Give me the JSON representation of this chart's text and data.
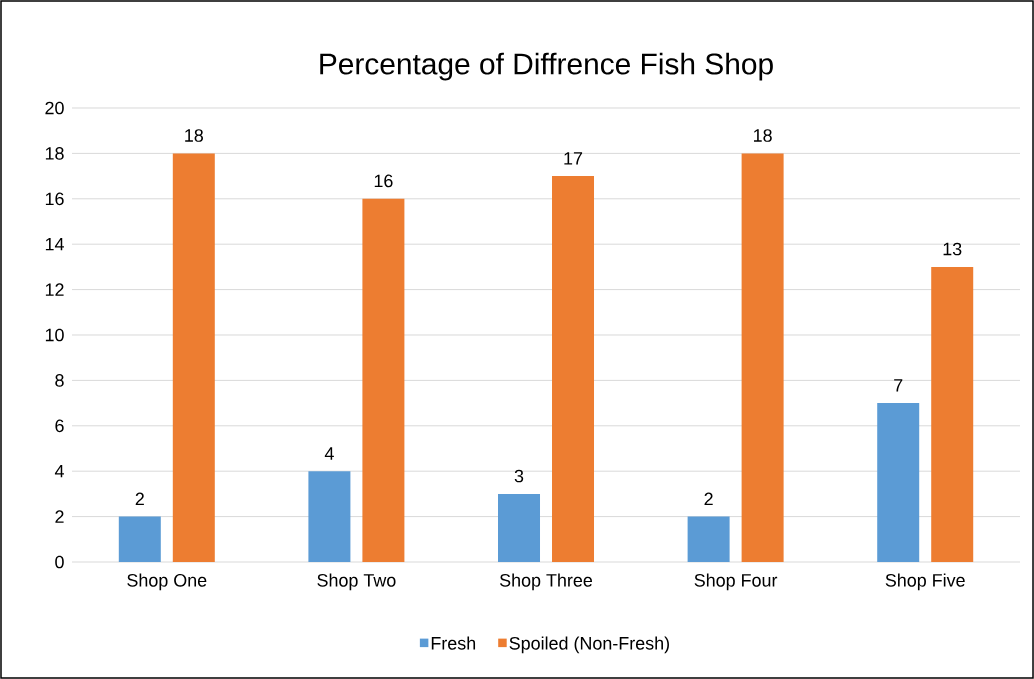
{
  "chart_data": {
    "type": "bar",
    "title": "Percentage of Diffrence Fish Shop",
    "categories": [
      "Shop One",
      "Shop Two",
      "Shop Three",
      "Shop Four",
      "Shop Five"
    ],
    "series": [
      {
        "name": "Fresh",
        "color": "#5b9bd5",
        "values": [
          2,
          4,
          3,
          2,
          7
        ]
      },
      {
        "name": "Spoiled (Non-Fresh)",
        "color": "#ed7d31",
        "values": [
          18,
          16,
          17,
          18,
          13
        ]
      }
    ],
    "ylim": [
      0,
      20
    ],
    "yticks": [
      0,
      2,
      4,
      6,
      8,
      10,
      12,
      14,
      16,
      18,
      20
    ],
    "grid": "y",
    "legend": "bottom",
    "data_labels": true
  }
}
